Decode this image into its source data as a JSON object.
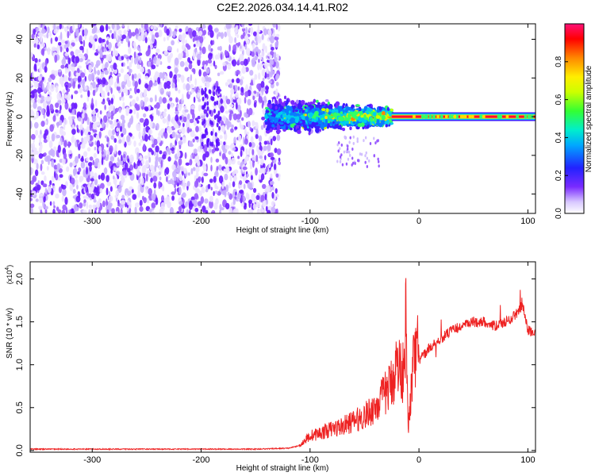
{
  "title": "C2E2.2026.034.14.41.R02",
  "colors": {
    "snr_line": "#ee2222",
    "spectrogram_ridge": "#ff0033"
  },
  "chart_data": [
    {
      "type": "heatmap",
      "xlabel": "Height of straight line (km)",
      "ylabel": "Frequency (Hz)",
      "xlim": [
        -357,
        107
      ],
      "ylim": [
        -50,
        48
      ],
      "xticks": [
        -300,
        -200,
        -100,
        0,
        100
      ],
      "xtick_labels": [
        "-300",
        "-200",
        "-100",
        "0",
        "100"
      ],
      "yticks": [
        -40,
        -20,
        0,
        20,
        40
      ],
      "ytick_labels": [
        "-40",
        "-20",
        "0",
        "20",
        "40"
      ],
      "grid": false,
      "colorbar": {
        "label": "Normalized spectral amplitude",
        "range": [
          0,
          1
        ],
        "ticks": [
          0.0,
          0.2,
          0.4,
          0.6,
          0.8
        ],
        "tick_labels": [
          "0.0",
          "0.2",
          "0.4",
          "0.6",
          "0.8"
        ],
        "colormap": "rainbow (white-purple-blue-cyan-green-yellow-orange-red-magenta)"
      },
      "regions": [
        {
          "description": "broadband noise",
          "x_range": [
            -357,
            -140
          ],
          "freq_range": [
            -50,
            48
          ],
          "amplitude": 0.15
        },
        {
          "description": "emerging signal",
          "x_range": [
            -140,
            -25
          ],
          "freq_range": [
            -12,
            10
          ],
          "amplitude": 0.35
        },
        {
          "description": "narrow signal",
          "x_range": [
            -25,
            107
          ],
          "freq_range": [
            -1,
            1
          ],
          "amplitude": 0.95
        }
      ]
    },
    {
      "type": "line",
      "xlabel": "Height of straight line (km)",
      "ylabel": "SNR (10 * v/v)",
      "y_multiplier_label": "(x10",
      "y_multiplier_exp": "4",
      "xlim": [
        -357,
        107
      ],
      "ylim": [
        -0.02,
        2.2
      ],
      "xticks": [
        -300,
        -200,
        -100,
        0,
        100
      ],
      "xtick_labels": [
        "-300",
        "-200",
        "-100",
        "0",
        "100"
      ],
      "yticks": [
        0.0,
        0.5,
        1.0,
        1.5,
        2.0
      ],
      "ytick_labels": [
        "0.0",
        "0.5",
        "1.0",
        "1.5",
        "2.0"
      ],
      "grid": false,
      "series": [
        {
          "x": [
            -357,
            -300,
            -250,
            -200,
            -150,
            -120,
            -110,
            -100,
            -90,
            -80,
            -70,
            -60,
            -50,
            -40,
            -30,
            -25,
            -20,
            -15,
            -12,
            -10,
            -5,
            0,
            10,
            20,
            30,
            40,
            50,
            60,
            70,
            80,
            85,
            90,
            95,
            100,
            107
          ],
          "values": [
            0.01,
            0.01,
            0.01,
            0.01,
            0.01,
            0.02,
            0.05,
            0.15,
            0.18,
            0.22,
            0.25,
            0.3,
            0.35,
            0.45,
            0.6,
            0.7,
            0.9,
            0.8,
            1.3,
            0.2,
            0.9,
            1.05,
            1.2,
            1.3,
            1.4,
            1.45,
            1.5,
            1.5,
            1.45,
            1.5,
            1.55,
            1.6,
            1.7,
            1.4,
            1.37
          ]
        }
      ]
    }
  ]
}
